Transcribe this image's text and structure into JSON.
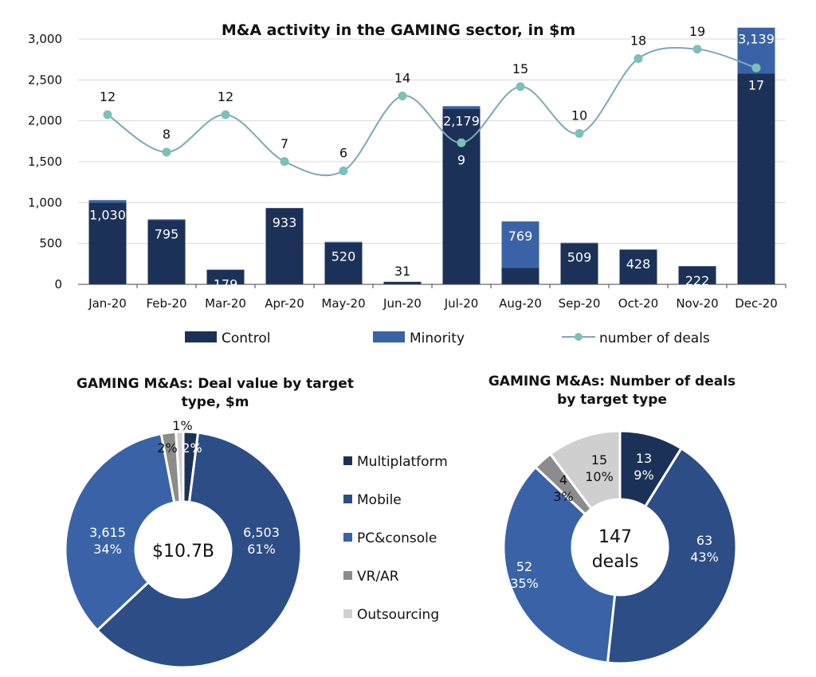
{
  "colors": {
    "control": "#1c3157",
    "minority": "#3a63a7",
    "deals_line": "#7fa8b9",
    "deals_marker": "#7cc0b8",
    "multiplatform": "#1c3157",
    "mobile": "#2c4d86",
    "pc_console": "#3a63a7",
    "vr_ar": "#8c8c8c",
    "outsourcing": "#cfcfcf"
  },
  "legend": {
    "control": "Control",
    "minority": "Minority",
    "deals": "number of deals",
    "types": [
      "Multiplatform",
      "Mobile",
      "PC&console",
      "VR/AR",
      "Outsourcing"
    ]
  },
  "chart_data": [
    {
      "type": "bar",
      "title": "M&A activity in the GAMING sector, in $m",
      "categories": [
        "Jan-20",
        "Feb-20",
        "Mar-20",
        "Apr-20",
        "May-20",
        "Jun-20",
        "Jul-20",
        "Aug-20",
        "Sep-20",
        "Oct-20",
        "Nov-20",
        "Dec-20"
      ],
      "series": [
        {
          "name": "Control",
          "values": [
            1000,
            785,
            179,
            933,
            510,
            31,
            2150,
            200,
            500,
            420,
            222,
            2580
          ]
        },
        {
          "name": "Minority",
          "values": [
            30,
            10,
            0,
            0,
            10,
            0,
            29,
            569,
            9,
            8,
            0,
            559
          ]
        },
        {
          "name": "number of deals",
          "type": "line",
          "axis": "secondary",
          "values": [
            12,
            8,
            12,
            7,
            6,
            14,
            9,
            15,
            10,
            18,
            19,
            17
          ]
        }
      ],
      "totals": [
        "1,030",
        "795",
        "179",
        "933",
        "520",
        "31",
        "2,179",
        "769",
        "509",
        "428",
        "222",
        "3,139"
      ],
      "deal_labels": [
        "12",
        "8",
        "12",
        "7",
        "6",
        "14",
        "9",
        "15",
        "10",
        "18",
        "19",
        "17"
      ],
      "yticks": [
        "0",
        "500",
        "1,000",
        "1,500",
        "2,000",
        "2,500",
        "3,000"
      ],
      "ylim": [
        0,
        3000
      ],
      "grid": true,
      "legend_position": "bottom"
    },
    {
      "type": "pie",
      "title": "GAMING M&As: Deal value by target type, $m",
      "title_lines": [
        "GAMING M&As: Deal value by target",
        "type, $m"
      ],
      "center_label": [
        "$10.7B"
      ],
      "slices": [
        {
          "name": "Multiplatform",
          "value": 2,
          "labels": [
            "2%"
          ]
        },
        {
          "name": "Mobile",
          "value": 61,
          "labels": [
            "6,503",
            "61%"
          ]
        },
        {
          "name": "PC&console",
          "value": 34,
          "labels": [
            "3,615",
            "34%"
          ]
        },
        {
          "name": "VR/AR",
          "value": 2,
          "labels": [
            "2%"
          ]
        },
        {
          "name": "Outsourcing",
          "value": 1,
          "labels": [
            "1%"
          ]
        }
      ]
    },
    {
      "type": "pie",
      "title": "GAMING M&As: Number of deals by target type",
      "title_lines": [
        "GAMING M&As: Number of deals",
        "by target type"
      ],
      "center_label": [
        "147",
        "deals"
      ],
      "slices": [
        {
          "name": "Multiplatform",
          "value": 13,
          "labels": [
            "13",
            "9%"
          ]
        },
        {
          "name": "Mobile",
          "value": 63,
          "labels": [
            "63",
            "43%"
          ]
        },
        {
          "name": "PC&console",
          "value": 52,
          "labels": [
            "52",
            "35%"
          ]
        },
        {
          "name": "VR/AR",
          "value": 4,
          "labels": [
            "4",
            "3%"
          ]
        },
        {
          "name": "Outsourcing",
          "value": 15,
          "labels": [
            "15",
            "10%"
          ]
        }
      ]
    }
  ]
}
